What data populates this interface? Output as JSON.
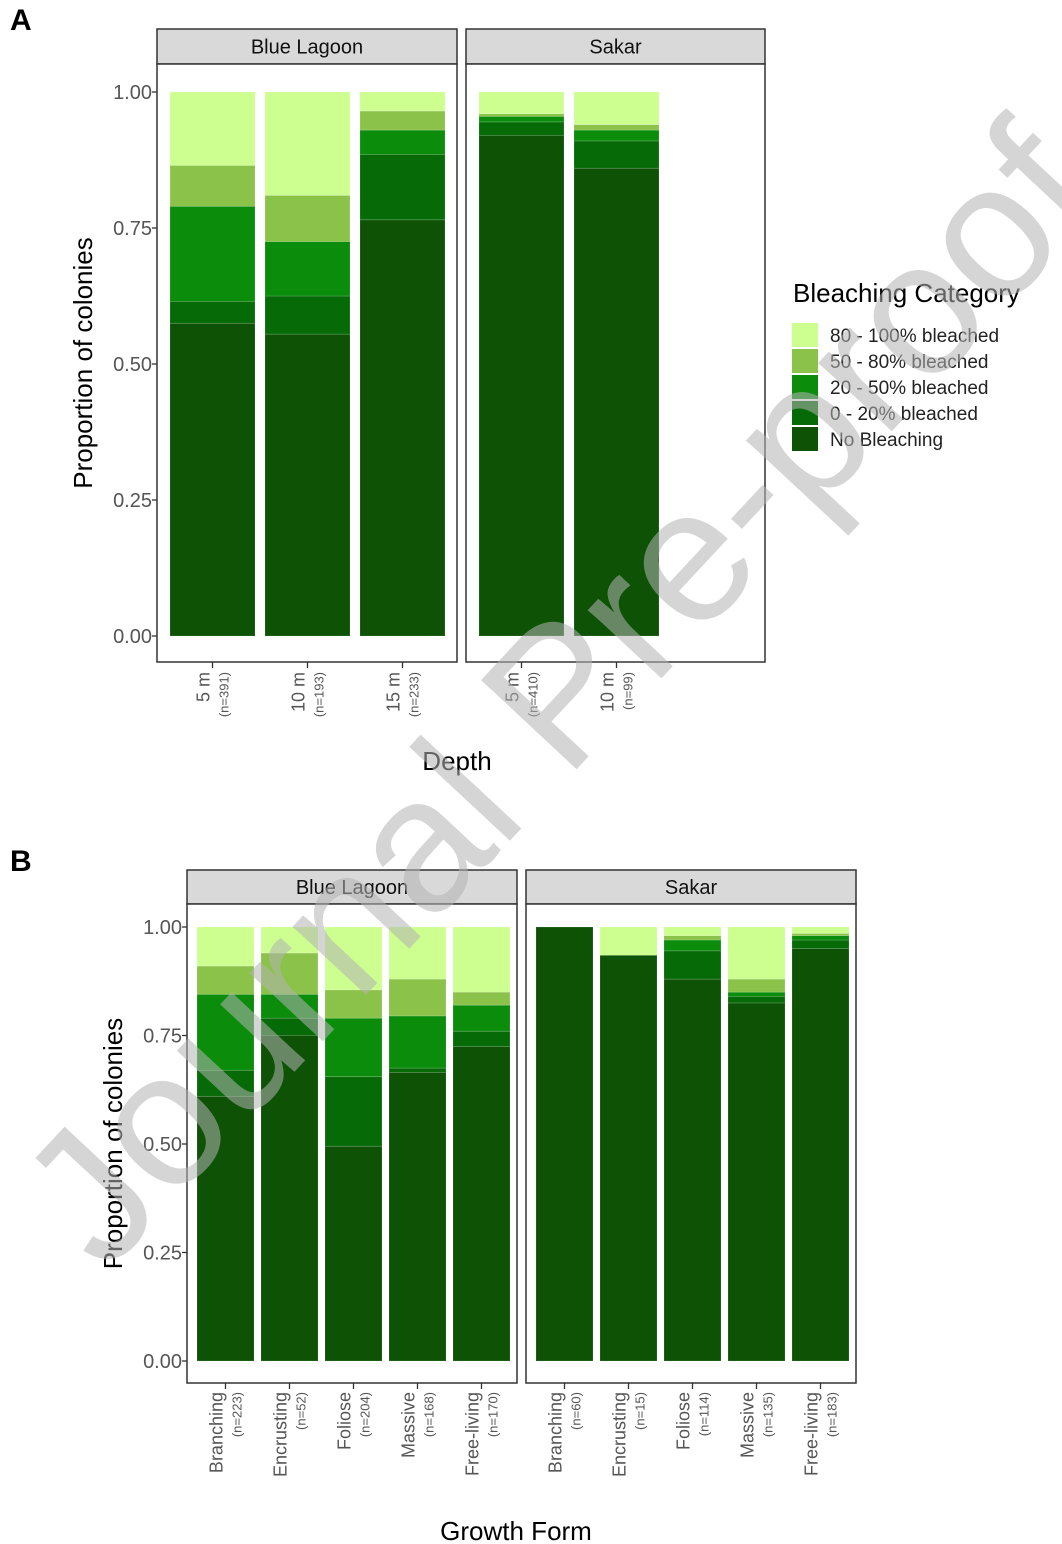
{
  "watermark": "Journal Pre-proof",
  "legend": {
    "title": "Bleaching Category",
    "items": [
      {
        "label": "80 - 100% bleached",
        "color": "#ccff8f"
      },
      {
        "label": "50 - 80% bleached",
        "color": "#8bc34a"
      },
      {
        "label": "20 - 50% bleached",
        "color": "#0b8c0b"
      },
      {
        "label": "0 - 20% bleached",
        "color": "#066b06"
      },
      {
        "label": "No Bleaching",
        "color": "#0d5205"
      }
    ]
  },
  "chart_data": [
    {
      "panel_label": "A",
      "type": "bar",
      "stacked": true,
      "xlabel": "Depth",
      "ylabel": "Proportion of colonies",
      "ylim": [
        0,
        1
      ],
      "yticks": [
        "0.00",
        "0.25",
        "0.50",
        "0.75",
        "1.00"
      ],
      "grid": false,
      "legend_position": "right",
      "facets": [
        {
          "name": "Blue  Lagoon",
          "categories": [
            {
              "label": "5 m",
              "n": "(n=391)"
            },
            {
              "label": "10 m",
              "n": "(n=193)"
            },
            {
              "label": "15 m",
              "n": "(n=233)"
            }
          ],
          "series": [
            {
              "name": "No Bleaching",
              "values": [
                0.575,
                0.555,
                0.765
              ]
            },
            {
              "name": "0 - 20% bleached",
              "values": [
                0.04,
                0.07,
                0.12
              ]
            },
            {
              "name": "20 - 50% bleached",
              "values": [
                0.175,
                0.1,
                0.045
              ]
            },
            {
              "name": "50 - 80% bleached",
              "values": [
                0.075,
                0.085,
                0.035
              ]
            },
            {
              "name": "80 - 100% bleached",
              "values": [
                0.135,
                0.19,
                0.035
              ]
            }
          ]
        },
        {
          "name": "Sakar",
          "categories": [
            {
              "label": "5 m",
              "n": "(n=410)"
            },
            {
              "label": "10 m",
              "n": "(n=99)"
            }
          ],
          "series": [
            {
              "name": "No Bleaching",
              "values": [
                0.92,
                0.86
              ]
            },
            {
              "name": "0 - 20% bleached",
              "values": [
                0.025,
                0.05
              ]
            },
            {
              "name": "20 - 50% bleached",
              "values": [
                0.01,
                0.02
              ]
            },
            {
              "name": "50 - 80% bleached",
              "values": [
                0.005,
                0.01
              ]
            },
            {
              "name": "80 - 100% bleached",
              "values": [
                0.04,
                0.06
              ]
            }
          ]
        }
      ]
    },
    {
      "panel_label": "B",
      "type": "bar",
      "stacked": true,
      "xlabel": "Growth Form",
      "ylabel": "Proportion of colonies",
      "ylim": [
        0,
        1
      ],
      "yticks": [
        "0.00",
        "0.25",
        "0.50",
        "0.75",
        "1.00"
      ],
      "grid": false,
      "facets": [
        {
          "name": "Blue  Lagoon",
          "categories": [
            {
              "label": "Branching",
              "n": "(n=223)"
            },
            {
              "label": "Encrusting",
              "n": "(n=52)"
            },
            {
              "label": "Foliose",
              "n": "(n=204)"
            },
            {
              "label": "Massive",
              "n": "(n=168)"
            },
            {
              "label": "Free-living",
              "n": "(n=170)"
            }
          ],
          "series": [
            {
              "name": "No Bleaching",
              "values": [
                0.61,
                0.75,
                0.495,
                0.665,
                0.725
              ]
            },
            {
              "name": "0 - 20% bleached",
              "values": [
                0.06,
                0.04,
                0.16,
                0.01,
                0.035
              ]
            },
            {
              "name": "20 - 50% bleached",
              "values": [
                0.175,
                0.055,
                0.135,
                0.12,
                0.06
              ]
            },
            {
              "name": "50 - 80% bleached",
              "values": [
                0.065,
                0.095,
                0.065,
                0.085,
                0.03
              ]
            },
            {
              "name": "80 - 100% bleached",
              "values": [
                0.09,
                0.06,
                0.145,
                0.12,
                0.15
              ]
            }
          ]
        },
        {
          "name": "Sakar",
          "categories": [
            {
              "label": "Branching",
              "n": "(n=60)"
            },
            {
              "label": "Encrusting",
              "n": "(n=15)"
            },
            {
              "label": "Foliose",
              "n": "(n=114)"
            },
            {
              "label": "Massive",
              "n": "(n=135)"
            },
            {
              "label": "Free-living",
              "n": "(n=183)"
            }
          ],
          "series": [
            {
              "name": "No Bleaching",
              "values": [
                1.0,
                0.935,
                0.88,
                0.825,
                0.95
              ]
            },
            {
              "name": "0 - 20% bleached",
              "values": [
                0,
                0,
                0.065,
                0.015,
                0.02
              ]
            },
            {
              "name": "20 - 50% bleached",
              "values": [
                0,
                0,
                0.025,
                0.01,
                0.01
              ]
            },
            {
              "name": "50 - 80% bleached",
              "values": [
                0,
                0,
                0.01,
                0.03,
                0.005
              ]
            },
            {
              "name": "80 - 100% bleached",
              "values": [
                0,
                0.065,
                0.02,
                0.12,
                0.015
              ]
            }
          ]
        }
      ]
    }
  ]
}
